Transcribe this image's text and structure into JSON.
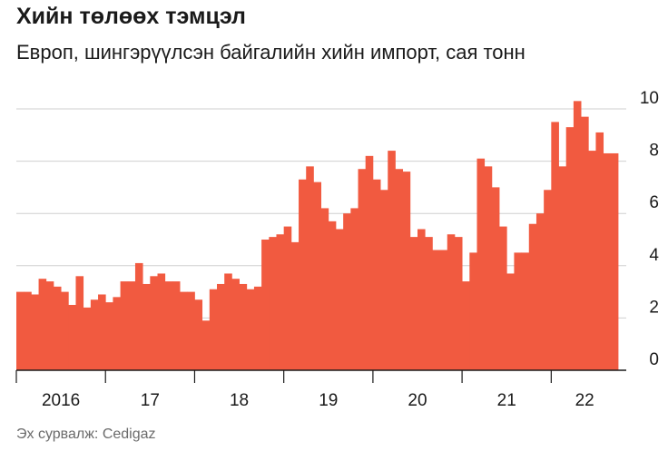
{
  "title": "Хийн төлөөх тэмцэл",
  "subtitle": "Европ, шингэрүүлсэн байгалийн хийн импорт, сая тонн",
  "source": "Эх сурвалж: Cedigaz",
  "colors": {
    "bar": "#f15a40",
    "grid": "#cfcfcf",
    "axis": "#1a1a1a"
  },
  "chart_data": {
    "type": "bar",
    "title": "Хийн төлөөх тэмцэл",
    "subtitle": "Европ, шингэрүүлсэн байгалийн хийн импорт, сая тонн",
    "ylim": [
      0,
      10
    ],
    "yticks": [
      0,
      2,
      4,
      6,
      8,
      10
    ],
    "grid": true,
    "x_labels": [
      "2016",
      "17",
      "18",
      "19",
      "20",
      "21",
      "22"
    ],
    "x_start": "2016-01",
    "values": [
      3.0,
      3.0,
      2.9,
      3.5,
      3.4,
      3.2,
      3.0,
      2.5,
      3.6,
      2.4,
      2.7,
      2.9,
      2.6,
      2.8,
      3.4,
      3.4,
      4.1,
      3.3,
      3.6,
      3.7,
      3.4,
      3.4,
      3.0,
      3.0,
      2.7,
      1.9,
      3.1,
      3.3,
      3.7,
      3.5,
      3.3,
      3.1,
      3.2,
      5.0,
      5.1,
      5.2,
      5.5,
      4.9,
      7.3,
      7.8,
      7.2,
      6.2,
      5.7,
      5.4,
      6.0,
      6.2,
      7.7,
      8.2,
      7.3,
      6.9,
      8.4,
      7.7,
      7.6,
      5.1,
      5.4,
      5.1,
      4.6,
      4.6,
      5.2,
      5.1,
      3.4,
      4.5,
      8.1,
      7.8,
      7.0,
      5.5,
      3.7,
      4.5,
      4.5,
      5.6,
      6.0,
      6.9,
      9.5,
      7.8,
      9.3,
      10.3,
      9.7,
      8.4,
      9.1,
      8.3,
      8.3
    ]
  }
}
